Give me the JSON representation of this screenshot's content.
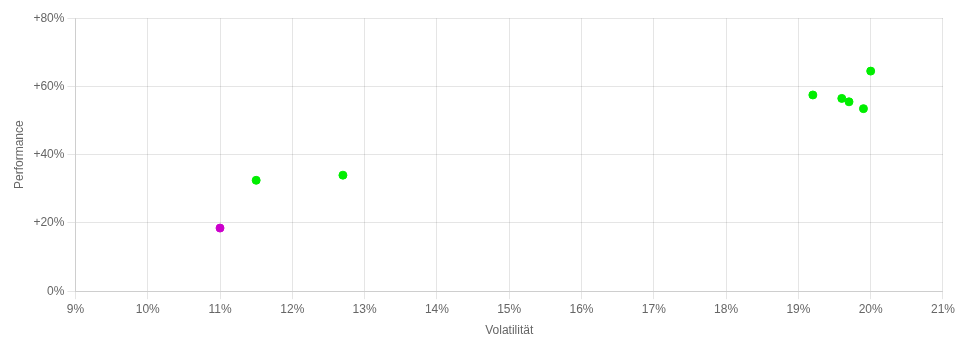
{
  "chart_data": {
    "type": "scatter",
    "xlabel": "Volatilität",
    "ylabel": "Performance",
    "xlim": [
      0.09,
      0.21
    ],
    "ylim": [
      0.0,
      0.8
    ],
    "xticks": [
      {
        "value": 0.09,
        "label": "9%"
      },
      {
        "value": 0.1,
        "label": "10%"
      },
      {
        "value": 0.11,
        "label": "11%"
      },
      {
        "value": 0.12,
        "label": "12%"
      },
      {
        "value": 0.13,
        "label": "13%"
      },
      {
        "value": 0.14,
        "label": "14%"
      },
      {
        "value": 0.15,
        "label": "15%"
      },
      {
        "value": 0.16,
        "label": "16%"
      },
      {
        "value": 0.17,
        "label": "17%"
      },
      {
        "value": 0.18,
        "label": "18%"
      },
      {
        "value": 0.19,
        "label": "19%"
      },
      {
        "value": 0.2,
        "label": "20%"
      },
      {
        "value": 0.21,
        "label": "21%"
      }
    ],
    "yticks": [
      {
        "value": 0.0,
        "label": "0%"
      },
      {
        "value": 0.2,
        "label": "+20%"
      },
      {
        "value": 0.4,
        "label": "+40%"
      },
      {
        "value": 0.6,
        "label": "+60%"
      },
      {
        "value": 0.8,
        "label": "+80%"
      }
    ],
    "grid": true,
    "series": [
      {
        "color": "#00ee00",
        "x": [
          0.115,
          0.127,
          0.192,
          0.196,
          0.197,
          0.199,
          0.2
        ],
        "values": [
          0.325,
          0.34,
          0.575,
          0.565,
          0.555,
          0.535,
          0.645
        ]
      },
      {
        "color": "#cc00cc",
        "x": [
          0.11
        ],
        "values": [
          0.185
        ]
      }
    ]
  }
}
